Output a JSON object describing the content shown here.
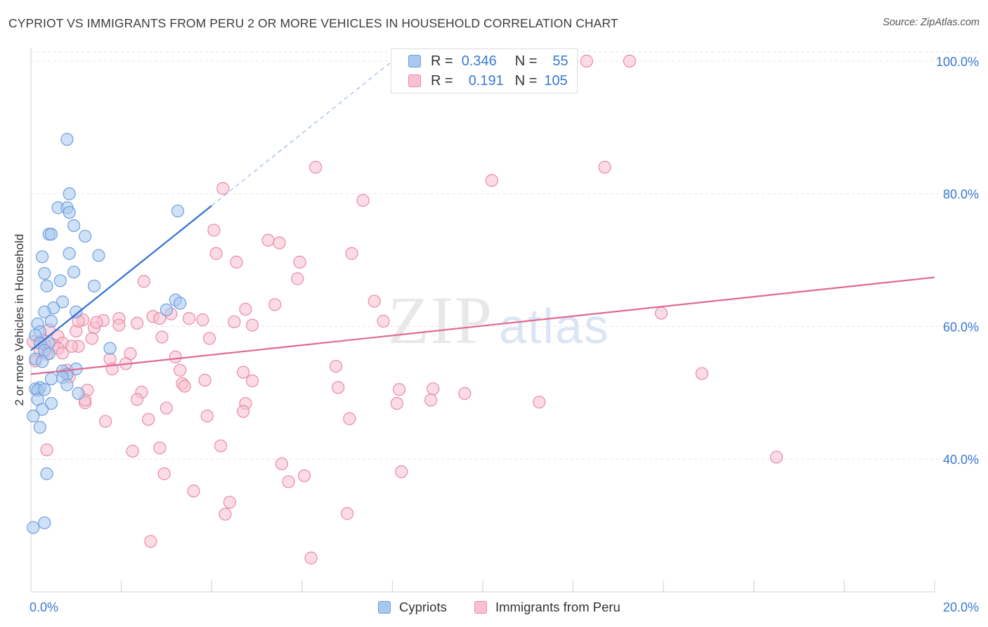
{
  "title": "CYPRIOT VS IMMIGRANTS FROM PERU 2 OR MORE VEHICLES IN HOUSEHOLD CORRELATION CHART",
  "source": "Source: ZipAtlas.com",
  "watermark": {
    "zip": "ZIP",
    "atlas": "atlas"
  },
  "legend": {
    "row1": {
      "r_label": "R =",
      "r_value": "0.346",
      "n_label": "N =",
      "n_value": "55"
    },
    "row2": {
      "r_label": "R =",
      "r_value": "0.191",
      "n_label": "N =",
      "n_value": "105"
    }
  },
  "bottom_legend": {
    "series1": "Cypriots",
    "series2": "Immigrants from Peru"
  },
  "colors": {
    "blue_fill": "#a8c8f0",
    "blue_stroke": "#6f9fdc",
    "blue_line": "#2f6fd0",
    "pink_fill": "#f8c0d0",
    "pink_stroke": "#e98aa6",
    "pink_line": "#e06a92",
    "grid": "#e3e3e3",
    "tick_label": "#3a78d4"
  },
  "chart_data": {
    "type": "scatter",
    "title": "CYPRIOT VS IMMIGRANTS FROM PERU 2 OR MORE VEHICLES IN HOUSEHOLD CORRELATION CHART",
    "xlabel": "",
    "ylabel": "2 or more Vehicles in Household",
    "xlim": [
      0,
      20
    ],
    "ylim": [
      20,
      102
    ],
    "x_tick_labels": [
      {
        "value": 0,
        "label": "0.0%"
      },
      {
        "value": 20,
        "label": "20.0%"
      }
    ],
    "y_tick_labels": [
      {
        "value": 40,
        "label": "40.0%"
      },
      {
        "value": 60,
        "label": "60.0%"
      },
      {
        "value": 80,
        "label": "80.0%"
      },
      {
        "value": 100,
        "label": "100.0%"
      }
    ],
    "x_minor_ticks": [
      0,
      2,
      4,
      6,
      8,
      10,
      12,
      14,
      16,
      18,
      20
    ],
    "series": [
      {
        "name": "Cypriots",
        "R": 0.346,
        "N": 55,
        "trend": {
          "x": [
            0.0,
            4.0
          ],
          "y": [
            56.4,
            78.2
          ],
          "dashed_to": {
            "x": 8.0,
            "y": 100.0
          }
        },
        "points": [
          [
            0.8,
            88.2
          ],
          [
            0.85,
            80.0
          ],
          [
            0.6,
            77.9
          ],
          [
            0.8,
            77.9
          ],
          [
            0.85,
            77.2
          ],
          [
            3.25,
            77.4
          ],
          [
            0.95,
            75.2
          ],
          [
            0.4,
            73.9
          ],
          [
            0.45,
            73.9
          ],
          [
            1.2,
            73.6
          ],
          [
            0.85,
            71.0
          ],
          [
            1.5,
            70.7
          ],
          [
            0.25,
            70.5
          ],
          [
            0.95,
            68.2
          ],
          [
            0.3,
            68.0
          ],
          [
            0.65,
            66.9
          ],
          [
            0.35,
            66.1
          ],
          [
            1.4,
            66.1
          ],
          [
            3.2,
            64.0
          ],
          [
            3.3,
            63.5
          ],
          [
            0.7,
            63.7
          ],
          [
            0.5,
            62.8
          ],
          [
            0.3,
            62.2
          ],
          [
            1.0,
            62.2
          ],
          [
            3.0,
            62.5
          ],
          [
            0.45,
            60.8
          ],
          [
            0.15,
            60.4
          ],
          [
            0.2,
            59.2
          ],
          [
            0.1,
            58.7
          ],
          [
            0.4,
            57.5
          ],
          [
            0.2,
            57.5
          ],
          [
            1.75,
            56.7
          ],
          [
            0.3,
            56.4
          ],
          [
            0.4,
            55.9
          ],
          [
            0.1,
            55.1
          ],
          [
            0.25,
            54.7
          ],
          [
            1.0,
            53.6
          ],
          [
            0.7,
            53.3
          ],
          [
            0.8,
            52.8
          ],
          [
            0.7,
            52.3
          ],
          [
            0.45,
            52.1
          ],
          [
            0.8,
            51.2
          ],
          [
            0.2,
            50.8
          ],
          [
            0.1,
            50.6
          ],
          [
            0.15,
            50.4
          ],
          [
            0.3,
            50.5
          ],
          [
            1.05,
            49.9
          ],
          [
            0.15,
            49.0
          ],
          [
            0.45,
            48.4
          ],
          [
            0.25,
            47.5
          ],
          [
            0.05,
            46.5
          ],
          [
            0.2,
            44.8
          ],
          [
            0.35,
            37.8
          ],
          [
            0.3,
            30.4
          ],
          [
            0.05,
            29.7
          ]
        ]
      },
      {
        "name": "Immigrants from Peru",
        "R": 0.191,
        "N": 105,
        "trend": {
          "x": [
            0.0,
            20.0
          ],
          "y": [
            52.8,
            67.4
          ]
        },
        "points": [
          [
            12.3,
            100.0
          ],
          [
            13.25,
            100.0
          ],
          [
            6.3,
            84.0
          ],
          [
            12.7,
            84.0
          ],
          [
            10.2,
            82.0
          ],
          [
            4.25,
            80.8
          ],
          [
            7.35,
            79.0
          ],
          [
            4.05,
            74.5
          ],
          [
            5.25,
            73.0
          ],
          [
            5.5,
            72.6
          ],
          [
            4.1,
            71.0
          ],
          [
            7.1,
            71.0
          ],
          [
            4.55,
            69.7
          ],
          [
            5.95,
            69.7
          ],
          [
            5.9,
            67.2
          ],
          [
            2.5,
            66.8
          ],
          [
            7.6,
            63.8
          ],
          [
            5.4,
            63.3
          ],
          [
            4.75,
            62.6
          ],
          [
            13.95,
            62.0
          ],
          [
            2.7,
            61.5
          ],
          [
            2.85,
            61.2
          ],
          [
            3.1,
            61.9
          ],
          [
            3.5,
            61.2
          ],
          [
            3.8,
            61.0
          ],
          [
            1.15,
            61.0
          ],
          [
            1.6,
            60.9
          ],
          [
            1.95,
            61.2
          ],
          [
            7.8,
            60.8
          ],
          [
            4.5,
            60.7
          ],
          [
            2.35,
            60.5
          ],
          [
            1.95,
            60.2
          ],
          [
            4.9,
            60.2
          ],
          [
            1.4,
            59.8
          ],
          [
            1.0,
            59.3
          ],
          [
            0.4,
            59.5
          ],
          [
            0.6,
            58.5
          ],
          [
            2.9,
            58.4
          ],
          [
            3.95,
            58.2
          ],
          [
            1.35,
            58.2
          ],
          [
            0.05,
            57.7
          ],
          [
            0.25,
            57.9
          ],
          [
            0.2,
            57.5
          ],
          [
            0.7,
            57.5
          ],
          [
            0.5,
            57.2
          ],
          [
            0.6,
            56.7
          ],
          [
            1.05,
            57.0
          ],
          [
            0.7,
            56.0
          ],
          [
            0.2,
            56.2
          ],
          [
            0.35,
            55.8
          ],
          [
            3.2,
            55.4
          ],
          [
            2.2,
            55.9
          ],
          [
            1.75,
            55.1
          ],
          [
            2.1,
            54.4
          ],
          [
            0.1,
            54.8
          ],
          [
            1.8,
            53.6
          ],
          [
            3.3,
            53.4
          ],
          [
            0.8,
            53.4
          ],
          [
            6.75,
            54.0
          ],
          [
            4.7,
            53.1
          ],
          [
            14.85,
            52.9
          ],
          [
            0.85,
            52.4
          ],
          [
            3.85,
            51.9
          ],
          [
            4.9,
            51.8
          ],
          [
            3.35,
            51.4
          ],
          [
            3.4,
            51.0
          ],
          [
            2.45,
            50.1
          ],
          [
            1.25,
            50.4
          ],
          [
            8.15,
            50.5
          ],
          [
            8.9,
            50.6
          ],
          [
            6.8,
            50.8
          ],
          [
            9.6,
            49.9
          ],
          [
            2.35,
            49.0
          ],
          [
            1.2,
            48.5
          ],
          [
            4.75,
            48.4
          ],
          [
            8.1,
            48.4
          ],
          [
            8.85,
            48.9
          ],
          [
            11.25,
            48.6
          ],
          [
            3.0,
            47.7
          ],
          [
            4.7,
            47.2
          ],
          [
            3.9,
            46.5
          ],
          [
            7.05,
            46.1
          ],
          [
            2.6,
            46.0
          ],
          [
            1.65,
            45.7
          ],
          [
            0.35,
            41.4
          ],
          [
            4.2,
            42.0
          ],
          [
            2.85,
            41.7
          ],
          [
            2.25,
            41.2
          ],
          [
            16.5,
            40.3
          ],
          [
            5.55,
            39.3
          ],
          [
            8.2,
            38.1
          ],
          [
            2.95,
            37.8
          ],
          [
            6.05,
            37.5
          ],
          [
            5.7,
            36.6
          ],
          [
            3.6,
            35.2
          ],
          [
            4.4,
            33.5
          ],
          [
            4.3,
            31.7
          ],
          [
            7.0,
            31.8
          ],
          [
            2.65,
            27.6
          ],
          [
            6.2,
            25.1
          ],
          [
            1.05,
            60.8
          ],
          [
            1.45,
            60.6
          ],
          [
            0.3,
            57.3
          ],
          [
            0.9,
            57.0
          ],
          [
            1.2,
            48.9
          ]
        ]
      }
    ]
  }
}
